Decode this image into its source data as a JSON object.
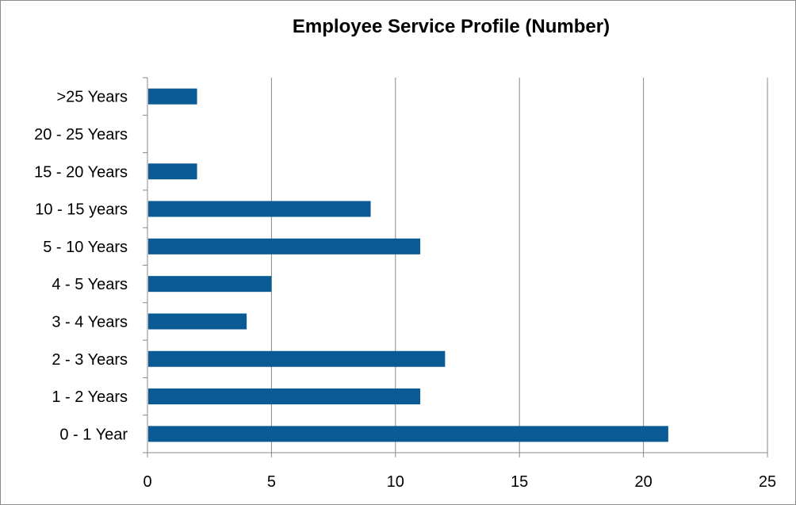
{
  "chart_data": {
    "type": "bar",
    "orientation": "horizontal",
    "title": "Employee Service Profile (Number)",
    "xlabel": "",
    "ylabel": "",
    "categories": [
      "0 - 1 Year",
      "1 - 2 Years",
      "2 - 3 Years",
      "3 - 4 Years",
      "4 - 5 Years",
      "5 - 10 Years",
      "10 - 15 years",
      "15 - 20 Years",
      "20 - 25 Years",
      ">25 Years"
    ],
    "values": [
      21,
      11,
      12,
      4,
      5,
      11,
      9,
      2,
      0,
      2
    ],
    "xlim": [
      0,
      25
    ],
    "xticks": [
      0,
      5,
      10,
      15,
      20,
      25
    ],
    "grid": "vertical",
    "legend": "none",
    "bar_color": "#0a5a96",
    "grid_color": "#888888"
  }
}
